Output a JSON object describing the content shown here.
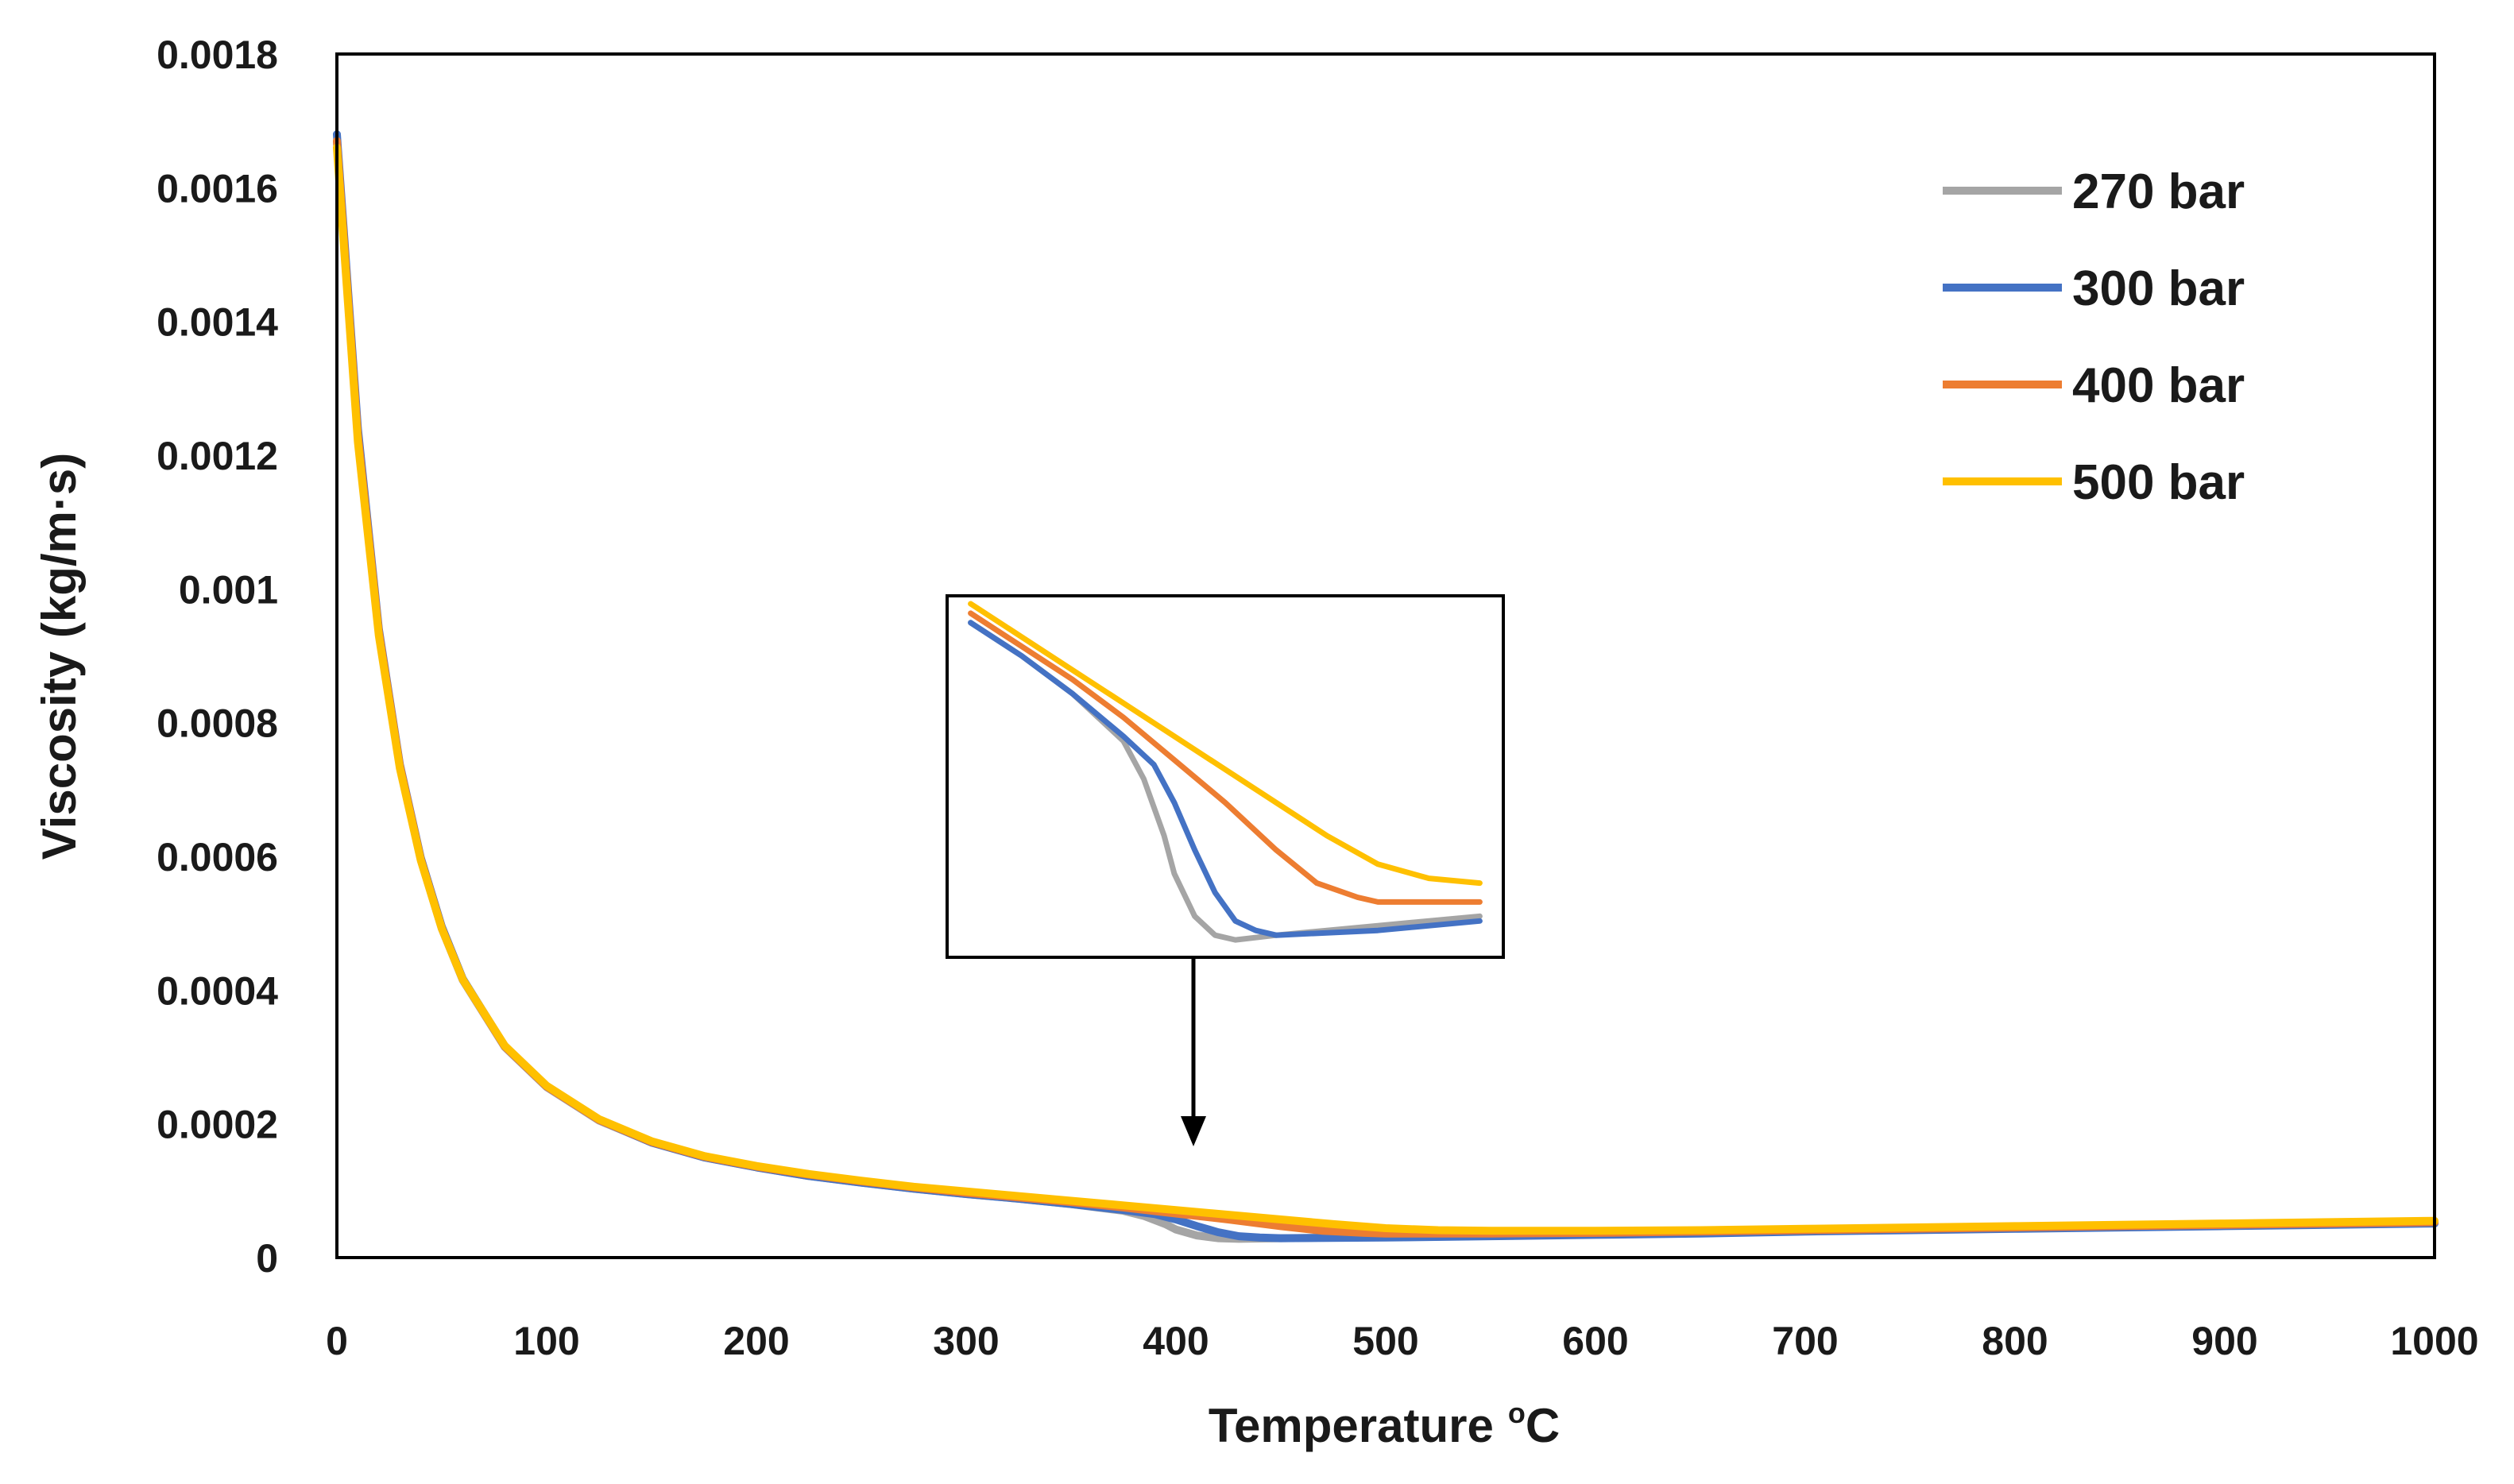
{
  "chart_data": {
    "type": "line",
    "title": "",
    "xlabel": "Temperature",
    "xlabel_sup": "o",
    "xlabel_unit": "C",
    "ylabel": "Viscosity (kg/m·s)",
    "xlim": [
      0,
      1000
    ],
    "ylim": [
      0,
      0.0018
    ],
    "x_ticks": [
      0,
      100,
      200,
      300,
      400,
      500,
      600,
      700,
      800,
      900,
      1000
    ],
    "x_tick_labels": [
      "0",
      "100",
      "200",
      "300",
      "400",
      "500",
      "600",
      "700",
      "800",
      "900",
      "1000"
    ],
    "y_ticks": [
      0,
      0.0002,
      0.0004,
      0.0006,
      0.0008,
      0.001,
      0.0012,
      0.0014,
      0.0016,
      0.0018
    ],
    "y_tick_labels": [
      "0",
      "0.0002",
      "0.0004",
      "0.0006",
      "0.0008",
      "0.001",
      "0.0012",
      "0.0014",
      "0.0016",
      "0.0018"
    ],
    "grid": false,
    "legend_position": "top-right",
    "series": [
      {
        "name": "270 bar",
        "color": "#a5a5a5",
        "x": [
          0,
          10,
          20,
          30,
          40,
          50,
          60,
          80,
          100,
          125,
          150,
          175,
          200,
          225,
          250,
          275,
          300,
          325,
          350,
          375,
          385,
          395,
          400,
          410,
          420,
          430,
          450,
          500,
          550,
          600,
          650,
          700,
          750,
          800,
          850,
          900,
          950,
          1000
        ],
        "y": [
          0.00167,
          0.00123,
          0.000935,
          0.000735,
          0.000595,
          0.000492,
          0.000415,
          0.000315,
          0.000255,
          0.000205,
          0.000172,
          0.00015,
          0.000135,
          0.000122,
          0.000112,
          0.000103,
          9.5e-05,
          8.8e-05,
          8e-05,
          7e-05,
          6.2e-05,
          5e-05,
          4.2e-05,
          3.3e-05,
          2.9e-05,
          2.8e-05,
          2.9e-05,
          3.1e-05,
          3.3e-05,
          3.5e-05,
          3.7e-05,
          4e-05,
          4.2e-05,
          4.4e-05,
          4.6e-05,
          4.8e-05,
          5e-05,
          5.2e-05
        ]
      },
      {
        "name": "300 bar",
        "color": "#4472c4",
        "x": [
          0,
          10,
          20,
          30,
          40,
          50,
          60,
          80,
          100,
          125,
          150,
          175,
          200,
          225,
          250,
          275,
          300,
          325,
          350,
          375,
          390,
          400,
          410,
          420,
          430,
          440,
          450,
          500,
          550,
          600,
          650,
          700,
          750,
          800,
          850,
          900,
          950,
          1000
        ],
        "y": [
          0.00168,
          0.00124,
          0.00094,
          0.000738,
          0.000598,
          0.000495,
          0.000417,
          0.000316,
          0.000256,
          0.000206,
          0.000172,
          0.00015,
          0.000135,
          0.000122,
          0.000112,
          0.000103,
          9.5e-05,
          8.8e-05,
          8e-05,
          7.1e-05,
          6.5e-05,
          5.7e-05,
          4.7e-05,
          3.8e-05,
          3.2e-05,
          3e-05,
          2.9e-05,
          3e-05,
          3.2e-05,
          3.4e-05,
          3.6e-05,
          3.9e-05,
          4.1e-05,
          4.3e-05,
          4.5e-05,
          4.7e-05,
          4.9e-05,
          5.1e-05
        ]
      },
      {
        "name": "400 bar",
        "color": "#ed7d31",
        "x": [
          0,
          10,
          20,
          30,
          40,
          50,
          60,
          80,
          100,
          125,
          150,
          175,
          200,
          225,
          250,
          275,
          300,
          325,
          350,
          375,
          400,
          425,
          450,
          470,
          490,
          500,
          550,
          600,
          650,
          700,
          750,
          800,
          850,
          900,
          950,
          1000
        ],
        "y": [
          0.00167,
          0.00123,
          0.000936,
          0.000736,
          0.000596,
          0.000493,
          0.000416,
          0.000316,
          0.000256,
          0.000206,
          0.000173,
          0.000151,
          0.000136,
          0.000124,
          0.000114,
          0.000105,
          9.7e-05,
          9e-05,
          8.3e-05,
          7.5e-05,
          6.6e-05,
          5.7e-05,
          4.7e-05,
          4e-05,
          3.7e-05,
          3.6e-05,
          3.6e-05,
          3.7e-05,
          3.9e-05,
          4.1e-05,
          4.3e-05,
          4.5e-05,
          4.7e-05,
          4.9e-05,
          5.1e-05,
          5.3e-05
        ]
      },
      {
        "name": "500 bar",
        "color": "#ffc000",
        "x": [
          0,
          10,
          20,
          30,
          40,
          50,
          60,
          80,
          100,
          125,
          150,
          175,
          200,
          225,
          250,
          275,
          300,
          325,
          350,
          375,
          400,
          425,
          450,
          475,
          500,
          525,
          550,
          600,
          650,
          700,
          750,
          800,
          850,
          900,
          950,
          1000
        ],
        "y": [
          0.00166,
          0.00122,
          0.00093,
          0.000732,
          0.000594,
          0.000492,
          0.000416,
          0.000317,
          0.000257,
          0.000207,
          0.000174,
          0.000152,
          0.000137,
          0.000125,
          0.000115,
          0.000106,
          9.9e-05,
          9.2e-05,
          8.5e-05,
          7.8e-05,
          7.1e-05,
          6.4e-05,
          5.7e-05,
          5e-05,
          4.4e-05,
          4.1e-05,
          4e-05,
          4e-05,
          4.1e-05,
          4.3e-05,
          4.5e-05,
          4.7e-05,
          4.9e-05,
          5.1e-05,
          5.3e-05,
          5.5e-05
        ]
      }
    ],
    "annotation": {
      "type": "zoom-inset",
      "points_to_x": 405,
      "points_to_y": 0.00017,
      "zoom_x_range": [
        290,
        560
      ],
      "zoom_y_range": [
        2.5e-05,
        0.0001
      ]
    }
  }
}
